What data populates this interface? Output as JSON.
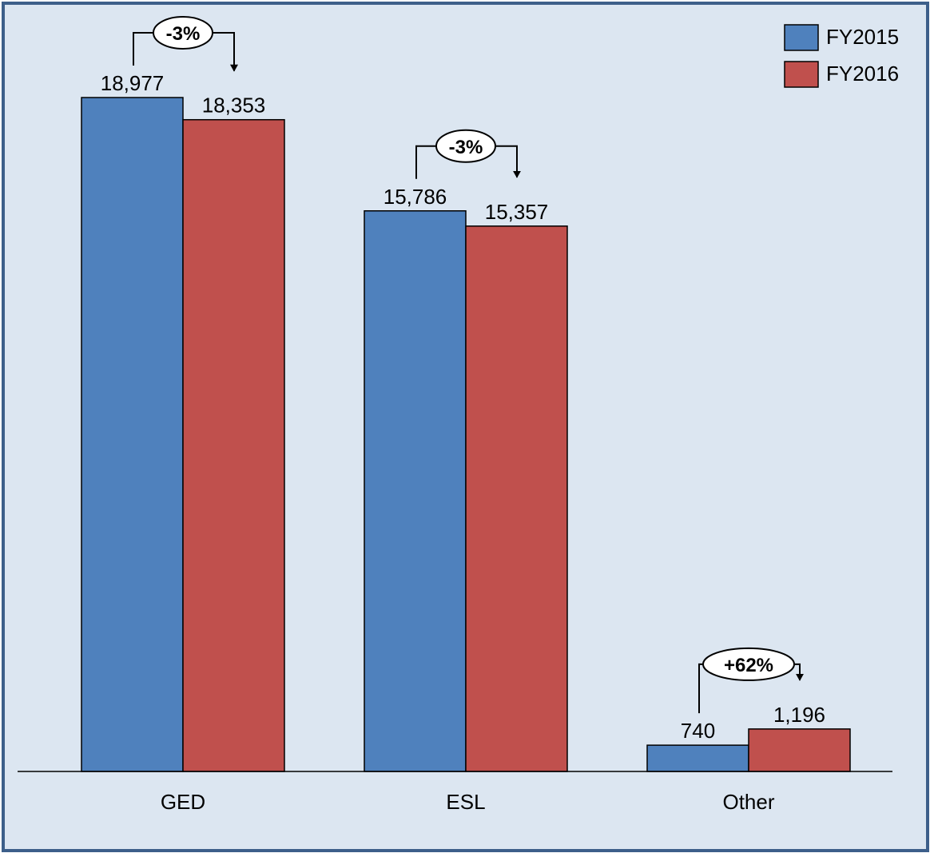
{
  "chart_data": {
    "type": "bar",
    "categories": [
      "GED",
      "ESL",
      "Other"
    ],
    "series": [
      {
        "name": "FY2015",
        "values": [
          18977,
          15786,
          740
        ]
      },
      {
        "name": "FY2016",
        "values": [
          18353,
          15357,
          1196
        ]
      }
    ],
    "value_labels": [
      [
        "18,977",
        "15,786",
        "740"
      ],
      [
        "18,353",
        "15,357",
        "1,196"
      ]
    ],
    "change_labels": [
      "-3%",
      "-3%",
      "+62%"
    ],
    "colors": {
      "FY2015": "#4f81bd",
      "FY2016": "#c0504d",
      "background": "#dce6f1",
      "border": "#3d5f8a"
    },
    "ylim": [
      0,
      20000
    ],
    "grid": false,
    "legend_position": "top-right"
  }
}
